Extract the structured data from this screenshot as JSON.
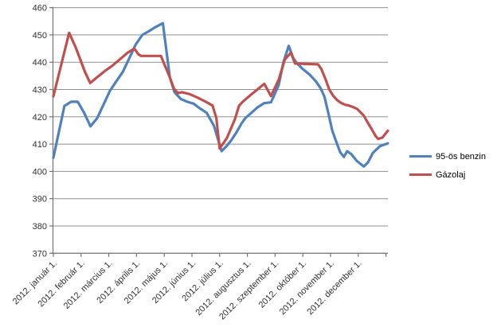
{
  "chart_data": {
    "type": "line",
    "title": "",
    "grid": true,
    "legend_position": "right",
    "x_axis": {
      "labels": [
        "2012. január 1.",
        "2012. február 1.",
        "2012. március 1.",
        "2012. április 1.",
        "2012. május 1.",
        "2012. június 1.",
        "2012. július 1.",
        "2012. augusztus 1.",
        "2012. szeptember 1.",
        "2012. október 1.",
        "2012. november 1.",
        "2012. december 1."
      ],
      "range_months": [
        0,
        12.07
      ]
    },
    "y_axis": {
      "min": 370,
      "max": 460,
      "step": 10,
      "ticks": [
        460,
        450,
        440,
        430,
        420,
        410,
        400,
        390,
        380,
        370
      ]
    },
    "series": [
      {
        "id": "benzin",
        "name": "95-ös benzin",
        "color": "#4F81BD",
        "x": [
          0,
          0.4,
          0.64,
          0.88,
          1.11,
          1.34,
          1.58,
          1.81,
          2.04,
          2.27,
          2.51,
          2.74,
          2.97,
          3.21,
          3.44,
          3.67,
          3.95,
          4.2,
          4.37,
          4.6,
          4.83,
          5.06,
          5.3,
          5.53,
          5.79,
          6.07,
          6.26,
          6.41,
          6.6,
          6.79,
          6.93,
          7.13,
          7.36,
          7.6,
          7.85,
          8.13,
          8.3,
          8.49,
          8.66,
          8.8,
          9.0,
          9.24,
          9.47,
          9.64,
          9.78,
          9.92,
          10.06,
          10.2,
          10.35,
          10.48,
          10.6,
          10.75,
          10.95,
          11.2,
          11.35,
          11.53,
          11.78,
          12.07
        ],
        "y": [
          405,
          424,
          425.5,
          425.5,
          421.5,
          416.5,
          419.5,
          424.5,
          429.5,
          433,
          436.5,
          441.5,
          446.5,
          450,
          451.3,
          452.8,
          454.3,
          434.5,
          429,
          426.5,
          425.5,
          424.8,
          423,
          421.5,
          416.8,
          407.4,
          409.4,
          411.3,
          414.2,
          417.6,
          419.6,
          421.3,
          423.4,
          425,
          425.3,
          431.6,
          440,
          446,
          441.4,
          439.5,
          437.5,
          435.5,
          433,
          430.5,
          427.4,
          421.4,
          415,
          411,
          407,
          405.3,
          407.4,
          406.3,
          403.8,
          401.8,
          403.3,
          406.8,
          409.2,
          410.3
        ]
      },
      {
        "id": "gazolaj",
        "name": "Gázolaj",
        "color": "#C0504D",
        "x": [
          0,
          0.57,
          0.81,
          1.14,
          1.33,
          1.57,
          1.86,
          2.1,
          2.39,
          2.67,
          2.92,
          3.07,
          3.17,
          3.88,
          4.2,
          4.35,
          4.49,
          4.64,
          4.92,
          5.21,
          5.5,
          5.74,
          5.88,
          6.0,
          6.26,
          6.55,
          6.7,
          6.84,
          7.13,
          7.37,
          7.61,
          7.85,
          8.13,
          8.35,
          8.57,
          8.72,
          9.55,
          9.67,
          9.81,
          9.95,
          10.1,
          10.24,
          10.38,
          10.53,
          10.67,
          10.81,
          10.96,
          11.2,
          11.34,
          11.49,
          11.63,
          11.72,
          11.87,
          12.07
        ],
        "y": [
          427.5,
          450.8,
          445.3,
          436.4,
          432.4,
          434.4,
          436.8,
          438.5,
          441,
          443.4,
          445,
          442.9,
          442.3,
          442.3,
          434.5,
          430.3,
          428.7,
          429,
          428.3,
          427,
          425.5,
          424.1,
          419.6,
          408.4,
          412.2,
          419.1,
          424.1,
          425.6,
          428.1,
          430.1,
          432.1,
          427.6,
          433.6,
          441,
          443.5,
          439.5,
          439.2,
          437.5,
          434,
          430.1,
          427.6,
          426.1,
          425.1,
          424.4,
          424.1,
          423.6,
          422.9,
          420.4,
          417.9,
          415.4,
          412.9,
          411.9,
          412.4,
          414.9
        ]
      }
    ]
  }
}
